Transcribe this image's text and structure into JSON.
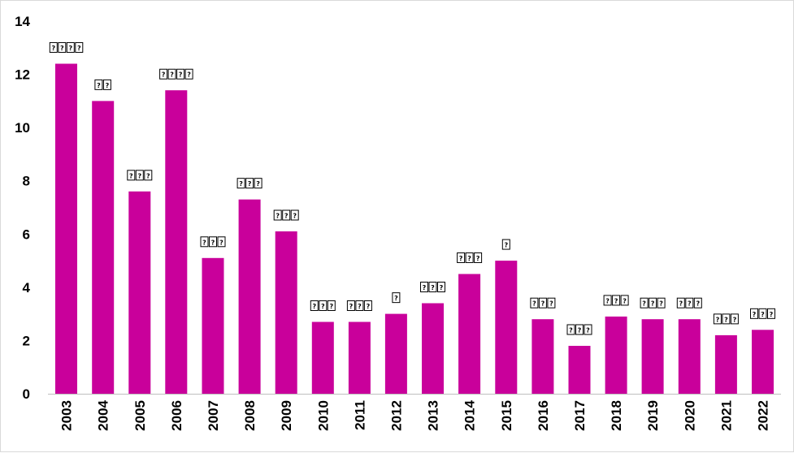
{
  "chart_data": {
    "type": "bar",
    "title": "",
    "xlabel": "",
    "ylabel": "",
    "ylim": [
      0,
      14
    ],
    "yticks": [
      "0",
      "2",
      "4",
      "6",
      "8",
      "10",
      "12",
      "14"
    ],
    "grid": false,
    "legend": "none",
    "bar_color": "#C9009B",
    "categories": [
      "2003",
      "2004",
      "2005",
      "2006",
      "2007",
      "2008",
      "2009",
      "2010",
      "2011",
      "2012",
      "2013",
      "2014",
      "2015",
      "2016",
      "2017",
      "2018",
      "2019",
      "2020",
      "2021",
      "2022"
    ],
    "values": [
      12.4,
      11.0,
      7.6,
      11.4,
      5.1,
      7.3,
      6.1,
      2.7,
      2.7,
      3.0,
      3.4,
      4.5,
      5.0,
      2.8,
      1.8,
      2.9,
      2.8,
      2.8,
      2.2,
      2.4
    ],
    "label_glyph_counts": [
      4,
      2,
      3,
      4,
      3,
      3,
      3,
      3,
      3,
      1,
      3,
      3,
      1,
      3,
      3,
      3,
      3,
      3,
      3,
      3
    ]
  }
}
